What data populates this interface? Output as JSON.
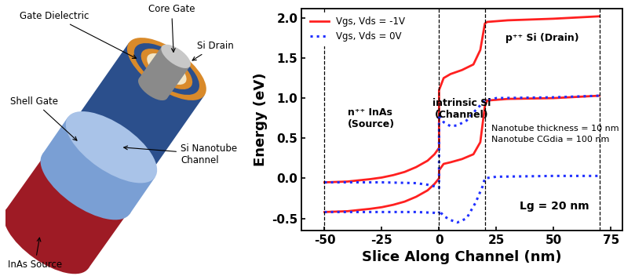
{
  "diagram": {
    "labels": {
      "gate_dielectric": "Gate Dielectric",
      "core_gate": "Core Gate",
      "si_drain": "Si Drain",
      "shell_gate": "Shell Gate",
      "channel": "Si Nanotube\nChannel",
      "source": "InAs Source"
    }
  },
  "chart_data": {
    "type": "line",
    "xlabel": "Slice Along Channel (nm)",
    "ylabel": "Energy (eV)",
    "xlim": [
      -60,
      80
    ],
    "ylim": [
      -0.65,
      2.12
    ],
    "xticks": [
      -50,
      -25,
      0,
      25,
      50,
      75
    ],
    "yticks": [
      {
        "value": -0.5,
        "label": "-0.5"
      },
      {
        "value": 0.0,
        "label": "0.0"
      },
      {
        "value": 0.5,
        "label": "0.5"
      },
      {
        "value": 1.0,
        "label": "1.0"
      },
      {
        "value": 1.5,
        "label": "1.5"
      },
      {
        "value": 2.0,
        "label": "2.0"
      }
    ],
    "legend": "upper left",
    "boundaries": [
      -50,
      0,
      20,
      70
    ],
    "annotations": [
      "n⁺⁺ InAs\n(Source)",
      "intrinsic Si\n(Channel)",
      "p⁺⁺ Si (Drain)",
      "Nanotube thickness = 10 nm",
      "Nanotube CGdia = 100 nm",
      "Lg = 20 nm"
    ],
    "series": [
      {
        "name": "Vgs, Vds = -1V",
        "color": "#ff2020",
        "line_style": "solid",
        "x": [
          -50,
          -40,
          -30,
          -25,
          -20,
          -15,
          -10,
          -5,
          -2,
          0,
          0,
          2,
          5,
          10,
          15,
          18,
          20,
          21,
          30,
          50,
          70
        ],
        "values": [
          -0.05,
          -0.04,
          -0.01,
          0.01,
          0.04,
          0.08,
          0.14,
          0.22,
          0.3,
          0.38,
          1.1,
          1.25,
          1.3,
          1.35,
          1.42,
          1.6,
          1.93,
          1.95,
          1.97,
          1.99,
          2.02
        ]
      },
      {
        "color": "#ff2020",
        "line_style": "solid",
        "x": [
          -50,
          -40,
          -30,
          -25,
          -20,
          -15,
          -10,
          -5,
          -2,
          0,
          0,
          2,
          5,
          10,
          15,
          18,
          20,
          21,
          30,
          50,
          70
        ],
        "values": [
          -0.42,
          -0.41,
          -0.38,
          -0.36,
          -0.33,
          -0.29,
          -0.23,
          -0.15,
          -0.07,
          0.0,
          0.1,
          0.18,
          0.2,
          0.24,
          0.3,
          0.45,
          0.9,
          0.97,
          0.99,
          1.0,
          1.03
        ]
      },
      {
        "name": "Vgs, Vds = 0V",
        "color": "#2030ff",
        "line_style": "dotted",
        "x": [
          -50,
          -25,
          -10,
          -5,
          -2,
          0,
          0,
          2,
          5,
          8,
          12,
          16,
          20,
          25,
          50,
          70
        ],
        "values": [
          -0.05,
          -0.05,
          -0.06,
          -0.08,
          -0.1,
          -0.12,
          0.8,
          0.7,
          0.65,
          0.66,
          0.72,
          0.85,
          0.97,
          1.0,
          1.01,
          1.03
        ]
      },
      {
        "color": "#2030ff",
        "line_style": "dotted",
        "x": [
          -50,
          -25,
          -10,
          -2,
          0,
          0,
          2,
          5,
          8,
          12,
          16,
          19,
          20,
          25,
          50,
          70
        ],
        "values": [
          -0.42,
          -0.42,
          -0.42,
          -0.43,
          -0.44,
          -0.4,
          -0.47,
          -0.52,
          -0.55,
          -0.5,
          -0.3,
          -0.1,
          0.0,
          0.02,
          0.03,
          0.03
        ]
      }
    ]
  }
}
